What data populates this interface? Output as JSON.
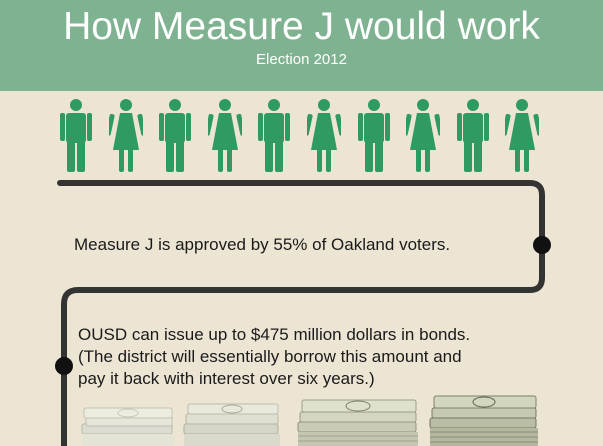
{
  "header": {
    "title": "How Measure J would work",
    "subtitle": "Election 2012"
  },
  "colors": {
    "header_green": "#7fb290",
    "figure_green": "#2f9a63",
    "background": "#ede5d4",
    "path": "#333333"
  },
  "people": [
    {
      "icon": "man-icon"
    },
    {
      "icon": "woman-icon"
    },
    {
      "icon": "man-icon"
    },
    {
      "icon": "woman-icon"
    },
    {
      "icon": "man-icon"
    },
    {
      "icon": "woman-icon"
    },
    {
      "icon": "man-icon"
    },
    {
      "icon": "woman-icon"
    },
    {
      "icon": "man-icon"
    },
    {
      "icon": "woman-icon"
    }
  ],
  "steps": [
    {
      "text": "Measure J is approved by 55% of Oakland voters."
    },
    {
      "text": "OUSD can issue up to $475 million dollars in bonds.\n(The district will essentially borrow this amount and\npay it back with interest over six years.)"
    }
  ],
  "money_stacks": [
    {
      "icon": "money-stack-small-icon"
    },
    {
      "icon": "money-stack-medium-icon"
    },
    {
      "icon": "money-stack-large-icon"
    },
    {
      "icon": "money-stack-largest-icon"
    }
  ]
}
